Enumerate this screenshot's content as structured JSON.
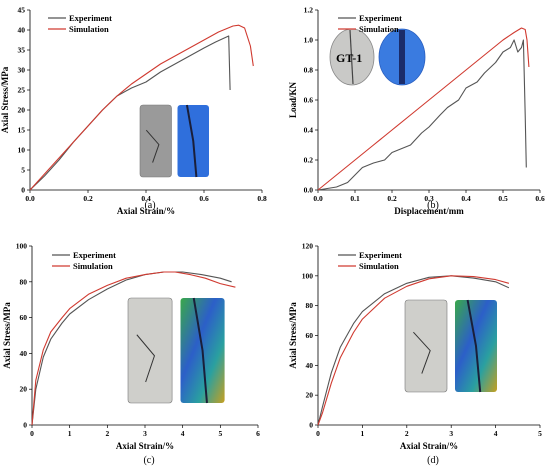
{
  "chart_data": [
    {
      "type": "line",
      "panel_label": "(a)",
      "xlabel": "Axial Strain/%",
      "ylabel": "Axial Stress/MPa",
      "xlim": [
        0,
        0.8
      ],
      "ylim": [
        0,
        45
      ],
      "x_ticks": [
        "0.0",
        "0.2",
        "0.4",
        "0.6",
        "0.8"
      ],
      "y_ticks": [
        "0",
        "5",
        "10",
        "15",
        "20",
        "25",
        "30",
        "35",
        "40",
        "45"
      ],
      "legend_position": "top-left",
      "series": [
        {
          "name": "Experiment",
          "color": "#555555",
          "x": [
            0,
            0.05,
            0.1,
            0.15,
            0.2,
            0.25,
            0.3,
            0.35,
            0.4,
            0.45,
            0.5,
            0.55,
            0.6,
            0.64,
            0.67,
            0.685,
            0.69
          ],
          "y": [
            0,
            3.5,
            7.5,
            12,
            16,
            20,
            23.5,
            25.5,
            27,
            29.5,
            31.5,
            33.5,
            35.5,
            37,
            38,
            38.5,
            25
          ]
        },
        {
          "name": "Simulation",
          "color": "#d03a30",
          "x": [
            0,
            0.05,
            0.1,
            0.15,
            0.2,
            0.25,
            0.3,
            0.35,
            0.4,
            0.45,
            0.5,
            0.55,
            0.6,
            0.65,
            0.7,
            0.72,
            0.74,
            0.76,
            0.77
          ],
          "y": [
            0,
            4,
            8,
            12,
            16,
            20,
            23.5,
            26.5,
            29,
            31.5,
            33.5,
            35.5,
            37.5,
            39.5,
            41,
            41.2,
            40.5,
            36,
            31
          ]
        }
      ],
      "inset": "photo of fractured specimen and simulated particle model"
    },
    {
      "type": "line",
      "panel_label": "(b)",
      "xlabel": "Displacement/mm",
      "ylabel": "Load/KN",
      "xlim": [
        0,
        0.6
      ],
      "ylim": [
        0,
        1.2
      ],
      "x_ticks": [
        "0.0",
        "0.1",
        "0.2",
        "0.3",
        "0.4",
        "0.5",
        "0.6"
      ],
      "y_ticks": [
        "0.0",
        "0.2",
        "0.4",
        "0.6",
        "0.8",
        "1.0",
        "1.2"
      ],
      "legend_position": "top-left",
      "specimen_label": "GT-1",
      "series": [
        {
          "name": "Experiment",
          "color": "#555555",
          "x": [
            0,
            0.05,
            0.08,
            0.1,
            0.12,
            0.15,
            0.18,
            0.2,
            0.22,
            0.25,
            0.28,
            0.3,
            0.33,
            0.35,
            0.38,
            0.4,
            0.43,
            0.45,
            0.48,
            0.5,
            0.52,
            0.53,
            0.54,
            0.55,
            0.555,
            0.56,
            0.563
          ],
          "y": [
            0,
            0.02,
            0.05,
            0.1,
            0.15,
            0.18,
            0.2,
            0.25,
            0.27,
            0.3,
            0.38,
            0.42,
            0.5,
            0.55,
            0.6,
            0.68,
            0.72,
            0.78,
            0.85,
            0.92,
            0.95,
            1.0,
            0.92,
            0.95,
            1.0,
            0.5,
            0.15
          ]
        },
        {
          "name": "Simulation",
          "color": "#d03a30",
          "x": [
            0,
            0.05,
            0.1,
            0.15,
            0.2,
            0.25,
            0.3,
            0.35,
            0.4,
            0.45,
            0.5,
            0.53,
            0.55,
            0.56,
            0.565,
            0.57
          ],
          "y": [
            0,
            0.1,
            0.2,
            0.3,
            0.4,
            0.5,
            0.6,
            0.7,
            0.8,
            0.9,
            1.0,
            1.05,
            1.08,
            1.07,
            1.0,
            0.82
          ]
        }
      ],
      "inset": "photo of split disc specimen labelled GT-1 and simulated model"
    },
    {
      "type": "line",
      "panel_label": "(c)",
      "xlabel": "Axial Strain/%",
      "ylabel": "Axial Stress/MPa",
      "xlim": [
        0,
        6
      ],
      "ylim": [
        0,
        100
      ],
      "x_ticks": [
        "0",
        "1",
        "2",
        "3",
        "4",
        "5",
        "6"
      ],
      "y_ticks": [
        "0",
        "20",
        "40",
        "60",
        "80",
        "100"
      ],
      "legend_position": "top-left",
      "series": [
        {
          "name": "Experiment",
          "color": "#555555",
          "x": [
            0,
            0.1,
            0.3,
            0.5,
            0.8,
            1,
            1.5,
            2,
            2.5,
            3,
            3.5,
            4,
            4.5,
            5,
            5.3
          ],
          "y": [
            0,
            20,
            38,
            48,
            57,
            62,
            70,
            76,
            81,
            84,
            85.5,
            85.5,
            84,
            82,
            80
          ]
        },
        {
          "name": "Simulation",
          "color": "#d03a30",
          "x": [
            0,
            0.1,
            0.3,
            0.5,
            0.8,
            1,
            1.5,
            2,
            2.5,
            3,
            3.5,
            3.8,
            4.2,
            4.6,
            5,
            5.4
          ],
          "y": [
            0,
            25,
            42,
            52,
            60,
            65,
            73,
            78,
            82,
            84,
            85.5,
            85.5,
            84,
            82,
            79,
            77
          ]
        }
      ],
      "inset": "photo of fractured cylinder and colored simulation model"
    },
    {
      "type": "line",
      "panel_label": "(d)",
      "xlabel": "Axial Strain/%",
      "ylabel": "Axial Stress/MPa",
      "xlim": [
        0,
        5
      ],
      "ylim": [
        0,
        120
      ],
      "x_ticks": [
        "0",
        "1",
        "2",
        "3",
        "4",
        "5"
      ],
      "y_ticks": [
        "0",
        "20",
        "40",
        "60",
        "80",
        "100",
        "120"
      ],
      "legend_position": "top-left",
      "series": [
        {
          "name": "Experiment",
          "color": "#555555",
          "x": [
            0,
            0.1,
            0.3,
            0.5,
            0.8,
            1,
            1.5,
            2,
            2.5,
            3,
            3.5,
            4,
            4.3
          ],
          "y": [
            0,
            12,
            35,
            52,
            68,
            76,
            88,
            95,
            99,
            100,
            98.5,
            96,
            92
          ]
        },
        {
          "name": "Simulation",
          "color": "#d03a30",
          "x": [
            0,
            0.1,
            0.3,
            0.5,
            0.8,
            1,
            1.5,
            2,
            2.5,
            3,
            3.5,
            4,
            4.3
          ],
          "y": [
            0,
            8,
            28,
            45,
            62,
            71,
            85,
            93,
            98,
            100,
            99.5,
            97.5,
            95
          ]
        }
      ],
      "inset": "photo of sheared cylinder and colored simulation model"
    }
  ]
}
